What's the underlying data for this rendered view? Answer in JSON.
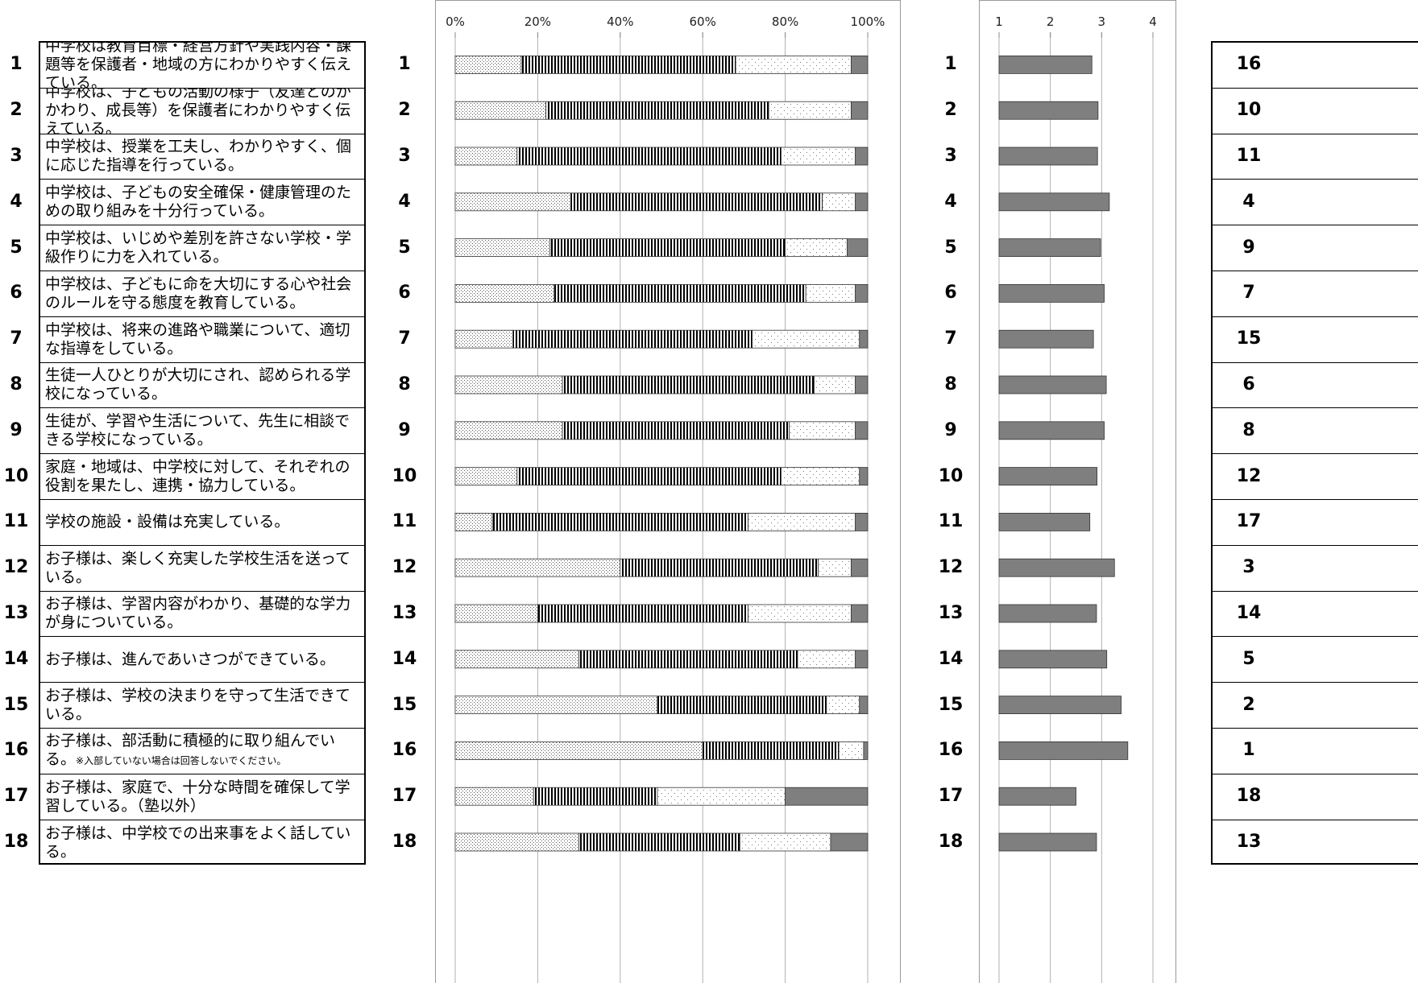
{
  "row_numbers": [
    "1",
    "2",
    "3",
    "4",
    "5",
    "6",
    "7",
    "8",
    "9",
    "10",
    "11",
    "12",
    "13",
    "14",
    "15",
    "16",
    "17",
    "18"
  ],
  "questions": [
    {
      "num": "1",
      "text": "中学校は教育目標・経営方針や実践内容・課題等を保護者・地域の方にわかりやすく伝えている。"
    },
    {
      "num": "2",
      "text": "中学校は、子どもの活動の様子（友達とのかかわり、成長等）を保護者にわかりやすく伝えている。"
    },
    {
      "num": "3",
      "text": "中学校は、授業を工夫し、わかりやすく、個に応じた指導を行っている。"
    },
    {
      "num": "4",
      "text": "中学校は、子どもの安全確保・健康管理のための取り組みを十分行っている。"
    },
    {
      "num": "5",
      "text": "中学校は、いじめや差別を許さない学校・学級作りに力を入れている。"
    },
    {
      "num": "6",
      "text": "中学校は、子どもに命を大切にする心や社会のルールを守る態度を教育している。"
    },
    {
      "num": "7",
      "text": "中学校は、将来の進路や職業について、適切な指導をしている。"
    },
    {
      "num": "8",
      "text": "生徒一人ひとりが大切にされ、認められる学校になっている。"
    },
    {
      "num": "9",
      "text": "生徒が、学習や生活について、先生に相談できる学校になっている。"
    },
    {
      "num": "10",
      "text": "家庭・地域は、中学校に対して、それぞれの役割を果たし、連携・協力している。"
    },
    {
      "num": "11",
      "text": "学校の施設・設備は充実している。"
    },
    {
      "num": "12",
      "text": "お子様は、楽しく充実した学校生活を送っている。"
    },
    {
      "num": "13",
      "text": "お子様は、学習内容がわかり、基礎的な学力が身についている。"
    },
    {
      "num": "14",
      "text": "お子様は、進んであいさつができている。"
    },
    {
      "num": "15",
      "text": "お子様は、学校の決まりを守って生活できている。"
    },
    {
      "num": "16",
      "text": "お子様は、部活動に積極的に取り組んでいる。",
      "note": "※入部していない場合は回答しないでください。"
    },
    {
      "num": "17",
      "text": "お子様は、家庭で、十分な時間を確保して学習している。（塾以外）"
    },
    {
      "num": "18",
      "text": "お子様は、中学校での出来事をよく話している。"
    }
  ],
  "ranking": [
    "16",
    "10",
    "11",
    "4",
    "9",
    "7",
    "15",
    "6",
    "8",
    "12",
    "17",
    "3",
    "14",
    "5",
    "2",
    "1",
    "18",
    "13"
  ],
  "chart_data": [
    {
      "type": "bar",
      "orientation": "horizontal",
      "stacked": true,
      "categories": [
        "1",
        "2",
        "3",
        "4",
        "5",
        "6",
        "7",
        "8",
        "9",
        "10",
        "11",
        "12",
        "13",
        "14",
        "15",
        "16",
        "17",
        "18"
      ],
      "xlim": [
        0,
        100
      ],
      "x_tick_labels": [
        "0%",
        "20%",
        "40%",
        "60%",
        "80%",
        "100%"
      ],
      "grid": true,
      "series": [
        {
          "pattern": "dots",
          "color": "#e6e6e6",
          "values": [
            16,
            22,
            15,
            28,
            23,
            24,
            14,
            26,
            26,
            15,
            9,
            40,
            20,
            30,
            49,
            60,
            19,
            30
          ]
        },
        {
          "pattern": "vertical-stripes",
          "color": "#000000",
          "values": [
            52,
            54,
            64,
            61,
            57,
            61,
            58,
            61,
            55,
            64,
            62,
            48,
            51,
            53,
            41,
            33,
            30,
            39
          ]
        },
        {
          "pattern": "light-dots",
          "color": "#f4f4f4",
          "values": [
            28,
            20,
            18,
            8,
            15,
            12,
            26,
            10,
            16,
            19,
            26,
            8,
            25,
            14,
            8,
            6,
            31,
            22
          ]
        },
        {
          "pattern": "solid",
          "color": "#7f7f7f",
          "values": [
            4,
            4,
            3,
            3,
            5,
            3,
            2,
            3,
            3,
            2,
            3,
            4,
            4,
            3,
            2,
            1,
            20,
            9
          ]
        }
      ]
    },
    {
      "type": "bar",
      "orientation": "horizontal",
      "categories": [
        "1",
        "2",
        "3",
        "4",
        "5",
        "6",
        "7",
        "8",
        "9",
        "10",
        "11",
        "12",
        "13",
        "14",
        "15",
        "16",
        "17",
        "18"
      ],
      "xlim": [
        1,
        4
      ],
      "x_tick_labels": [
        "1",
        "2",
        "3",
        "4"
      ],
      "grid": true,
      "color": "#7f7f7f",
      "values": [
        2.81,
        2.93,
        2.92,
        3.15,
        2.98,
        3.05,
        2.84,
        3.09,
        3.05,
        2.91,
        2.77,
        3.25,
        2.9,
        3.1,
        3.38,
        3.51,
        2.5,
        2.9
      ]
    }
  ]
}
